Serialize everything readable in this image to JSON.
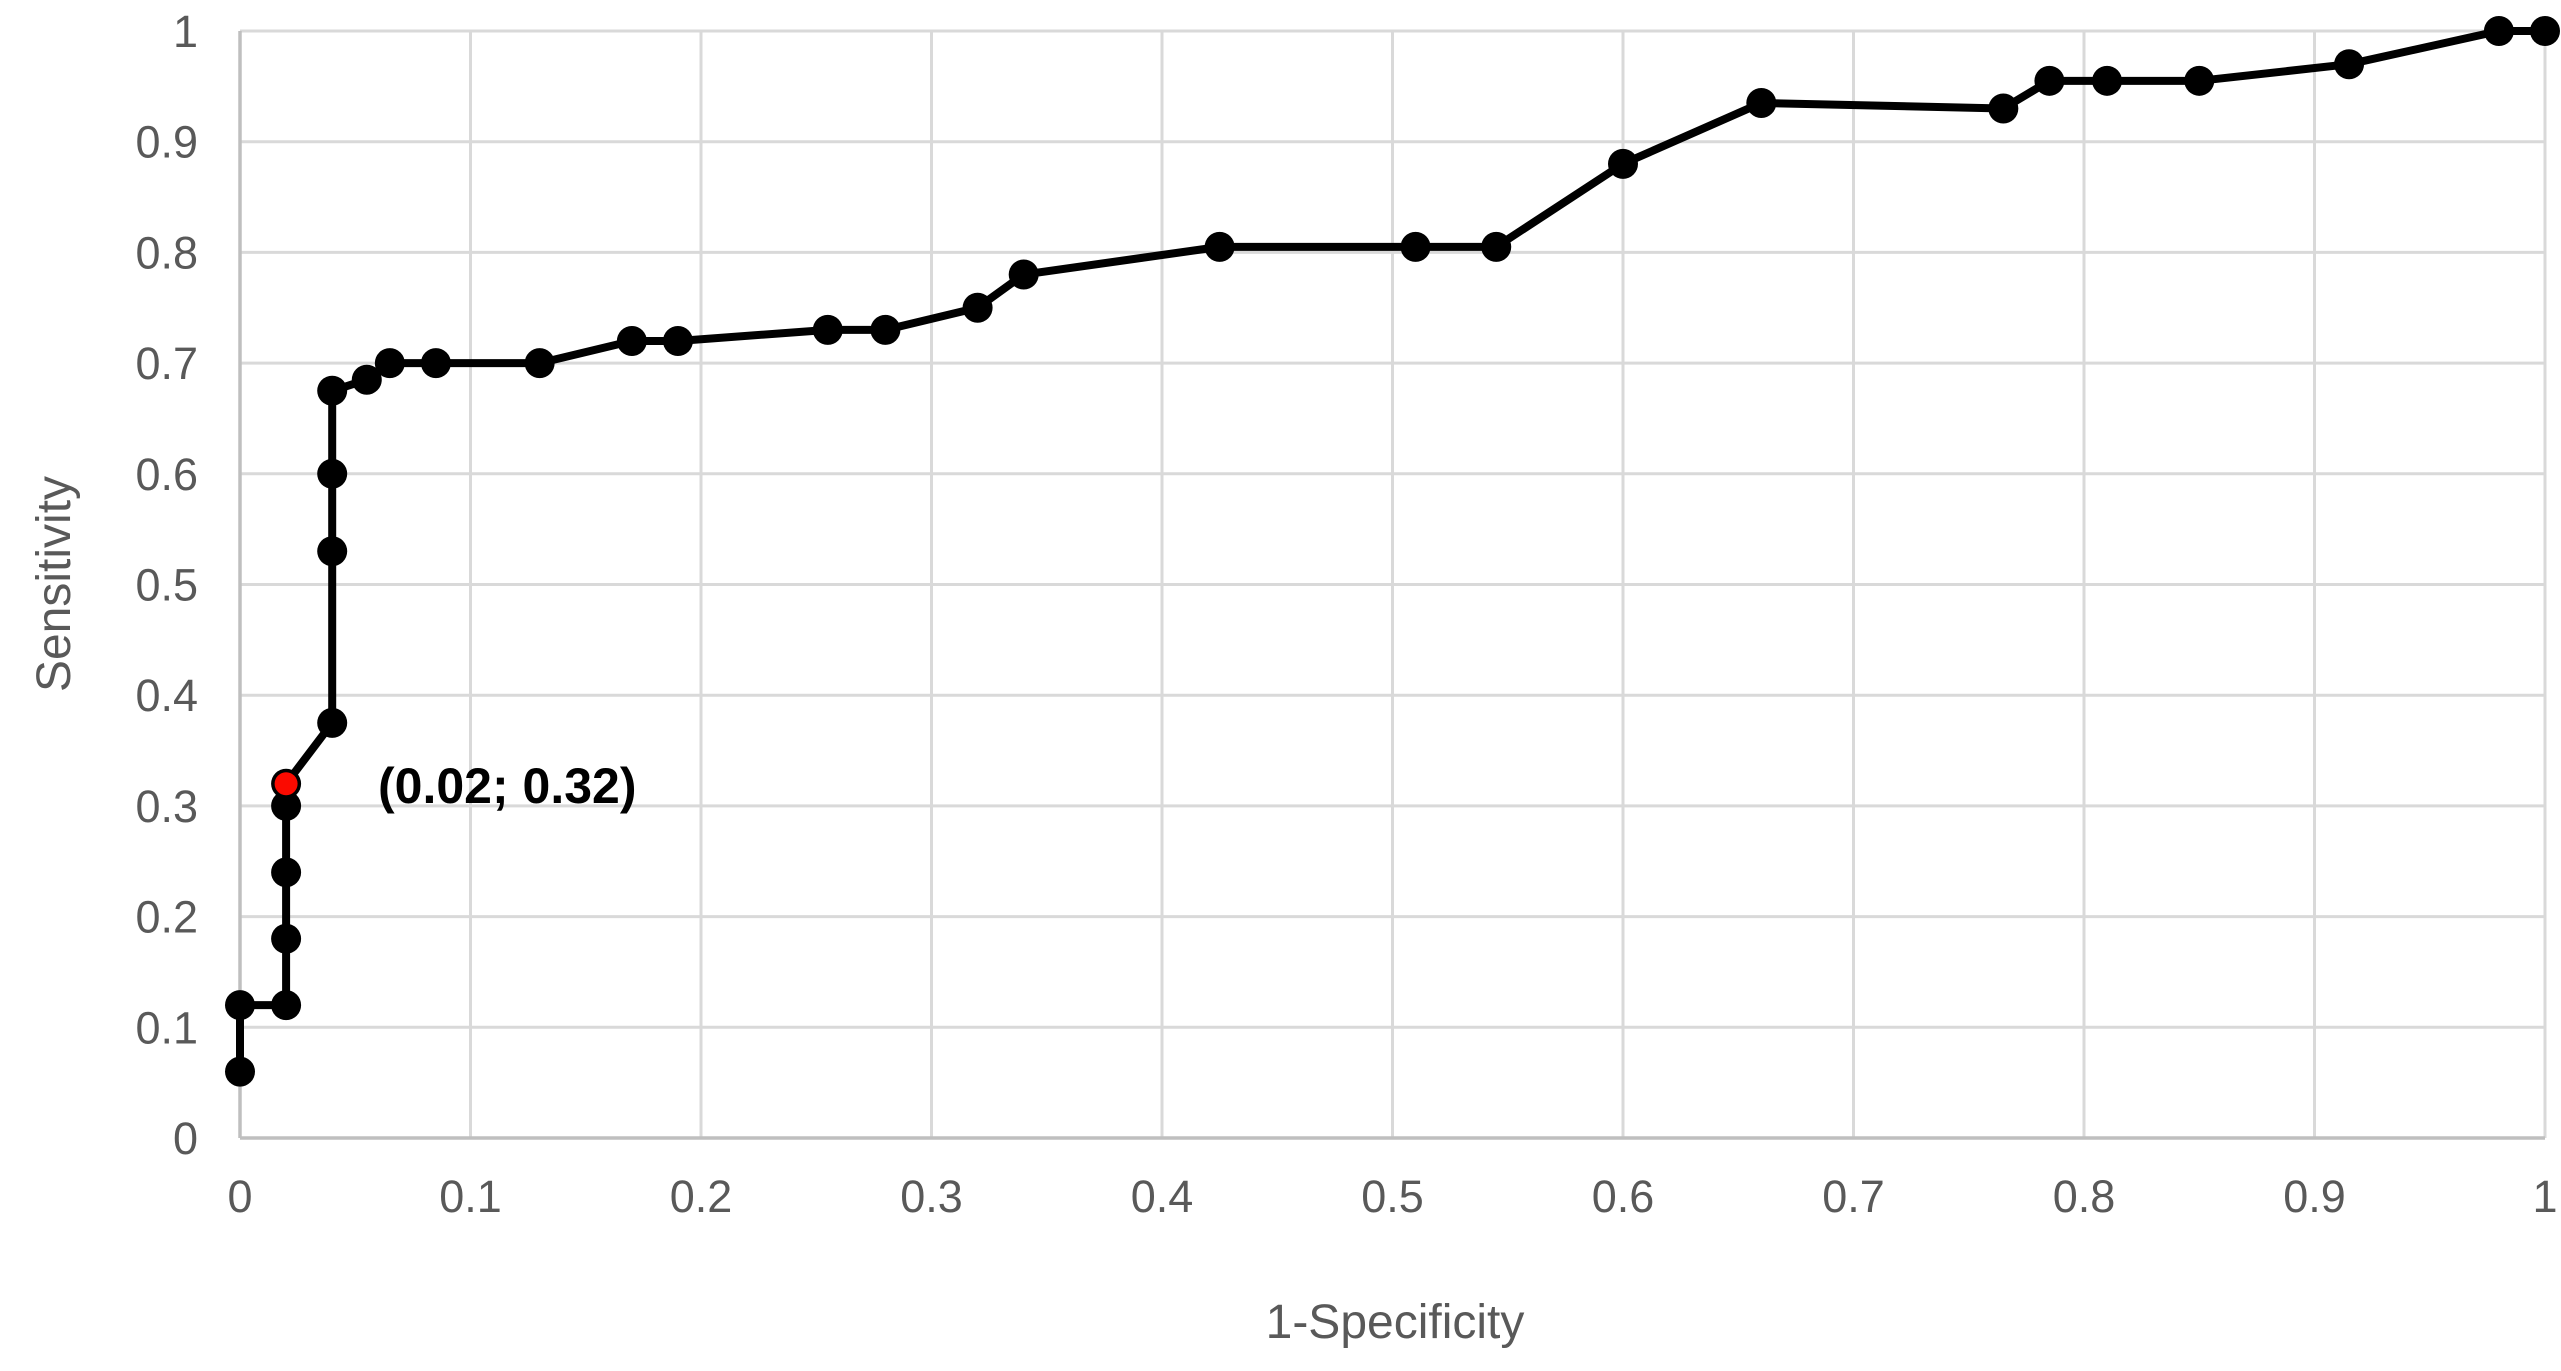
{
  "chart_data": {
    "type": "line",
    "title": "",
    "xlabel": "1-Specificity",
    "ylabel": "Sensitivity",
    "xlim": [
      0,
      1
    ],
    "ylim": [
      0,
      1
    ],
    "tick_step": 0.1,
    "x_tick_labels": [
      "0",
      "0.1",
      "0.2",
      "0.3",
      "0.4",
      "0.5",
      "0.6",
      "0.7",
      "0.8",
      "0.9",
      "1"
    ],
    "y_tick_labels": [
      "0",
      "0.1",
      "0.2",
      "0.3",
      "0.4",
      "0.5",
      "0.6",
      "0.7",
      "0.8",
      "0.9",
      "1"
    ],
    "grid": true,
    "legend": "none",
    "series": [
      {
        "name": "ROC curve",
        "color": "#000000",
        "marker": "circle",
        "points": [
          [
            0,
            0.06
          ],
          [
            0,
            0.12
          ],
          [
            0.02,
            0.12
          ],
          [
            0.02,
            0.18
          ],
          [
            0.02,
            0.24
          ],
          [
            0.02,
            0.3
          ],
          [
            0.02,
            0.32
          ],
          [
            0.04,
            0.375
          ],
          [
            0.04,
            0.53
          ],
          [
            0.04,
            0.6
          ],
          [
            0.04,
            0.675
          ],
          [
            0.055,
            0.685
          ],
          [
            0.065,
            0.7
          ],
          [
            0.085,
            0.7
          ],
          [
            0.13,
            0.7
          ],
          [
            0.17,
            0.72
          ],
          [
            0.19,
            0.72
          ],
          [
            0.255,
            0.73
          ],
          [
            0.28,
            0.73
          ],
          [
            0.32,
            0.75
          ],
          [
            0.34,
            0.78
          ],
          [
            0.425,
            0.805
          ],
          [
            0.51,
            0.805
          ],
          [
            0.545,
            0.805
          ],
          [
            0.6,
            0.88
          ],
          [
            0.66,
            0.935
          ],
          [
            0.765,
            0.93
          ],
          [
            0.785,
            0.955
          ],
          [
            0.81,
            0.955
          ],
          [
            0.85,
            0.955
          ],
          [
            0.915,
            0.97
          ],
          [
            0.98,
            1.0
          ],
          [
            1.0,
            1.0
          ]
        ]
      }
    ],
    "highlight": {
      "x": 0.02,
      "y": 0.32,
      "color": "#fb0a00",
      "label": "(0.02; 0.32)"
    },
    "colors": {
      "grid": "#d9d9d9",
      "axis": "#bfbfbf",
      "tick_label": "#595959",
      "axis_title": "#595959",
      "annotation": "#000000",
      "line": "#000000"
    }
  }
}
